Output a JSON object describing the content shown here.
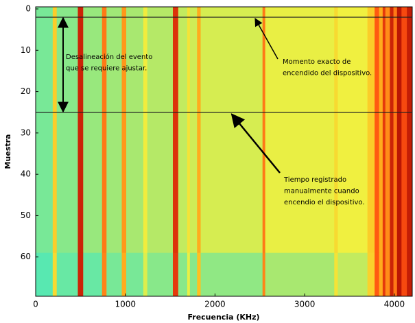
{
  "chart_data": {
    "type": "heatmap",
    "x_label": "Frecuencia (KHz)",
    "y_label": "Muestra",
    "xlim": [
      0,
      4200
    ],
    "ylim": [
      69.5,
      -0.5
    ],
    "xticks": [
      0,
      1000,
      2000,
      3000,
      4000
    ],
    "yticks": [
      0,
      10,
      20,
      30,
      40,
      50,
      60
    ],
    "colormap": [
      "#50e8b8",
      "#a8e870",
      "#f0f040",
      "#ffc020",
      "#ff5010",
      "#a00000"
    ],
    "clim": [
      0.45,
      1
    ],
    "x": [
      0,
      190,
      235,
      470,
      530,
      740,
      790,
      960,
      1010,
      1200,
      1245,
      1530,
      1590,
      1690,
      1720,
      1800,
      1840,
      2530,
      2560,
      3330,
      3370,
      3700,
      3780,
      3830,
      3870,
      3900,
      3950,
      3990,
      4030,
      4080,
      4140,
      4200
    ],
    "y": [
      -0.5,
      59,
      69.5
    ],
    "values": [
      [
        0.5,
        0.75,
        0.52,
        0.95,
        0.54,
        0.85,
        0.55,
        0.82,
        0.56,
        0.68,
        0.58,
        0.93,
        0.6,
        0.7,
        0.62,
        0.8,
        0.63,
        0.85,
        0.66,
        0.72,
        0.67,
        0.75,
        0.88,
        0.8,
        0.92,
        0.83,
        0.95,
        0.85,
        0.97,
        0.9,
        0.96
      ],
      [
        0.46,
        0.72,
        0.48,
        0.95,
        0.48,
        0.84,
        0.5,
        0.8,
        0.5,
        0.64,
        0.52,
        0.92,
        0.52,
        0.66,
        0.52,
        0.78,
        0.53,
        0.84,
        0.56,
        0.7,
        0.6,
        0.74,
        0.88,
        0.8,
        0.92,
        0.83,
        0.95,
        0.85,
        0.97,
        0.9,
        0.96
      ]
    ],
    "hlines": [
      2,
      25
    ],
    "annotations": [
      {
        "lines": [
          "Desalineación del evento",
          "que se requiere ajustar."
        ]
      },
      {
        "lines": [
          "Momento exacto de",
          "encendido del dispositivo."
        ]
      },
      {
        "lines": [
          "Tiempo registrado",
          "manualmente cuando",
          "encendio el dispositivo."
        ]
      }
    ]
  }
}
